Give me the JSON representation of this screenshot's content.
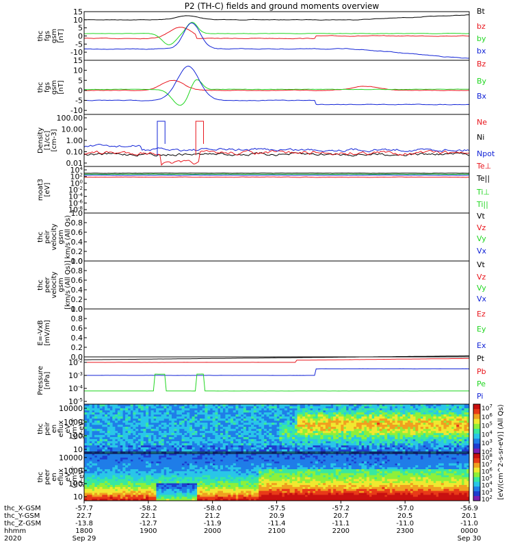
{
  "title": "P2 (TH-C) fields and ground moments overview",
  "colors": {
    "black": "#000000",
    "red": "#e8131a",
    "green": "#1fd61f",
    "blue": "#1022d6"
  },
  "chart_data": [
    {
      "id": "fgs_gsm",
      "type": "line",
      "ylabel": [
        "thc",
        "fgs",
        "gsm",
        "[nT]"
      ],
      "ylim": [
        -15,
        15
      ],
      "yticks": [
        "15",
        "10",
        "5",
        "0",
        "-5",
        "-10"
      ],
      "ytick_values": [
        15,
        10,
        5,
        0,
        -5,
        -10
      ],
      "series": [
        {
          "name": "Bt",
          "color": "black"
        },
        {
          "name": "bz",
          "color": "red"
        },
        {
          "name": "by",
          "color": "green"
        },
        {
          "name": "bx",
          "color": "blue"
        }
      ]
    },
    {
      "id": "fgs_dsl",
      "type": "line",
      "ylabel": [
        "thc",
        "fgs",
        "gsm",
        "[nT]"
      ],
      "ylim": [
        -12,
        15
      ],
      "yticks": [
        "15",
        "10",
        "5",
        "0",
        "-5",
        "-10"
      ],
      "ytick_values": [
        15,
        10,
        5,
        0,
        -5,
        -10
      ],
      "series": [
        {
          "name": "Bz",
          "color": "red"
        },
        {
          "name": "By",
          "color": "green"
        },
        {
          "name": "Bx",
          "color": "blue"
        }
      ]
    },
    {
      "id": "density",
      "type": "line",
      "scale": "log",
      "ylabel": [
        "Density",
        "[1/cc]",
        "[cm-3]"
      ],
      "yticks": [
        "100.00",
        "10.00",
        "1.00",
        "0.10",
        "0.01"
      ],
      "ytick_values": [
        100,
        10,
        1,
        0.1,
        0.01
      ],
      "series": [
        {
          "name": "Ne",
          "color": "red"
        },
        {
          "name": "Ni",
          "color": "black"
        },
        {
          "name": "Npot",
          "color": "blue"
        }
      ]
    },
    {
      "id": "temperature",
      "type": "line",
      "scale": "log",
      "ylabel": [
        "moat3",
        "[eV]"
      ],
      "yticks": [
        "10^4",
        "10^2",
        "10^0",
        "10^-2",
        "10^-4",
        "10^-6",
        "10^-8"
      ],
      "ytick_values": [
        4,
        2,
        0,
        -2,
        -4,
        -6,
        -8
      ],
      "series": [
        {
          "name": "Te⊥",
          "color": "red"
        },
        {
          "name": "Te||",
          "color": "black"
        },
        {
          "name": "Ti⊥",
          "color": "green"
        },
        {
          "name": "Ti||",
          "color": "green"
        }
      ]
    },
    {
      "id": "peir_velocity",
      "type": "line",
      "ylabel": [
        "thc",
        "peir",
        "velocity",
        "gsm",
        "km/s (All Qs)"
      ],
      "ylim": [
        0,
        1
      ],
      "yticks": [
        "1.0",
        "0.8",
        "0.6",
        "0.4",
        "0.2",
        "0.0"
      ],
      "ytick_values": [
        1,
        0.8,
        0.6,
        0.4,
        0.2,
        0
      ],
      "series": [
        {
          "name": "Vt",
          "color": "black"
        },
        {
          "name": "Vz",
          "color": "red"
        },
        {
          "name": "Vy",
          "color": "green"
        },
        {
          "name": "Vx",
          "color": "blue"
        }
      ]
    },
    {
      "id": "peer_velocity",
      "type": "line",
      "ylabel": [
        "thc",
        "peer",
        "velocity",
        "gsm",
        "[km/s (All Qs)]"
      ],
      "ylim": [
        0,
        1
      ],
      "yticks": [
        "1.0",
        "0.8",
        "0.6",
        "0.4",
        "0.2",
        "0.0"
      ],
      "ytick_values": [
        1,
        0.8,
        0.6,
        0.4,
        0.2,
        0
      ],
      "series": [
        {
          "name": "Vt",
          "color": "black"
        },
        {
          "name": "Vz",
          "color": "red"
        },
        {
          "name": "Vy",
          "color": "green"
        },
        {
          "name": "Vx",
          "color": "blue"
        }
      ]
    },
    {
      "id": "efield",
      "type": "line",
      "ylabel": [
        "E=-VxB",
        "[mV/m]"
      ],
      "ylim": [
        0,
        1
      ],
      "yticks": [
        "1.0",
        "0.8",
        "0.6",
        "0.4",
        "0.2",
        "0.0"
      ],
      "ytick_values": [
        1,
        0.8,
        0.6,
        0.4,
        0.2,
        0
      ],
      "series": [
        {
          "name": "Ez",
          "color": "red"
        },
        {
          "name": "Ey",
          "color": "green"
        },
        {
          "name": "Ex",
          "color": "blue"
        }
      ]
    },
    {
      "id": "pressure",
      "type": "line",
      "scale": "log",
      "ylabel": [
        "Pressure",
        "[nPa]"
      ],
      "yticks": [
        "10^-2",
        "10^-3",
        "10^-4",
        "10^-5"
      ],
      "ytick_values": [
        -2,
        -3,
        -4,
        -5
      ],
      "series": [
        {
          "name": "Pt",
          "color": "black"
        },
        {
          "name": "Pb",
          "color": "red"
        },
        {
          "name": "Pe",
          "color": "green"
        },
        {
          "name": "Pi",
          "color": "blue"
        }
      ]
    },
    {
      "id": "peir_spec",
      "type": "heatmap",
      "ylabel": [
        "thc",
        "peir",
        "en",
        "eflux",
        "eV",
        "(cm^2-s-",
        "sr-eV)"
      ],
      "yticks": [
        "10000",
        "1000",
        "100",
        "10"
      ],
      "ytick_values": [
        4,
        3,
        2,
        1
      ]
    },
    {
      "id": "peer_spec",
      "type": "heatmap",
      "ylabel": [
        "thc",
        "peer",
        "en",
        "eflux",
        "eV",
        "(cm^2-s-",
        "sr-eV)"
      ],
      "yticks": [
        "10000",
        "1000",
        "100",
        "10"
      ],
      "ytick_values": [
        4,
        3,
        2,
        1
      ]
    }
  ],
  "colorbar": {
    "label": "[eV/(cm^2-s-sr-eV)] (All Qs)",
    "ticks_top": [
      "10^7",
      "10^6",
      "10^5",
      "10^4",
      "10^3",
      "10^2"
    ],
    "ticks_bottom": [
      "10^8",
      "10^7",
      "10^6",
      "10^5",
      "10^4",
      "10^3",
      "10^2"
    ]
  },
  "x_axis": {
    "row_labels": [
      "thc_X-GSM",
      "thc_Y-GSM",
      "thc_Z-GSM",
      "hhmm",
      "2020"
    ],
    "columns": [
      {
        "x": [
          "-57.7",
          "22.7",
          "-13.8",
          "1800",
          "Sep 29"
        ]
      },
      {
        "x": [
          "-58.2",
          "22.1",
          "-12.7",
          "1900",
          ""
        ]
      },
      {
        "x": [
          "-58.0",
          "21.2",
          "-11.9",
          "2000",
          ""
        ]
      },
      {
        "x": [
          "-57.5",
          "20.9",
          "-11.4",
          "2100",
          ""
        ]
      },
      {
        "x": [
          "-57.2",
          "20.7",
          "-11.1",
          "2200",
          ""
        ]
      },
      {
        "x": [
          "-57.0",
          "20.5",
          "-11.0",
          "2300",
          ""
        ]
      },
      {
        "x": [
          "-56.9",
          "20.1",
          "-11.0",
          "0000",
          "Sep 30"
        ]
      }
    ]
  }
}
